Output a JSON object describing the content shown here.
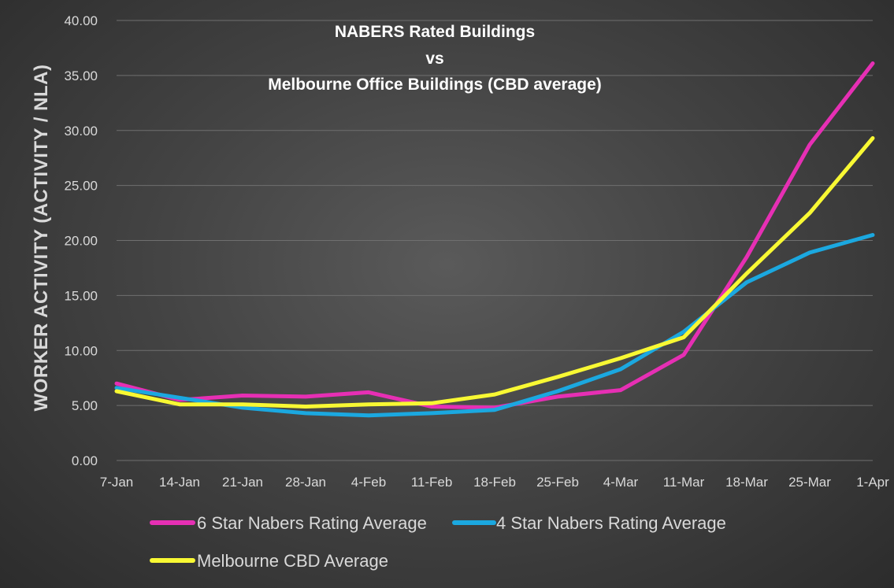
{
  "chart_data": {
    "type": "line",
    "title_lines": [
      "NABERS Rated Buildings",
      "vs",
      "Melbourne Office Buildings (CBD average)"
    ],
    "xlabel": "",
    "ylabel": "WORKER ACTIVITY (ACTIVITY / NLA)",
    "x": [
      "7-Jan",
      "14-Jan",
      "21-Jan",
      "28-Jan",
      "4-Feb",
      "11-Feb",
      "18-Feb",
      "25-Feb",
      "4-Mar",
      "11-Mar",
      "18-Mar",
      "25-Mar",
      "1-Apr"
    ],
    "ylim": [
      0,
      40
    ],
    "yticks": [
      "0.00",
      "5.00",
      "10.00",
      "15.00",
      "20.00",
      "25.00",
      "30.00",
      "35.00",
      "40.00"
    ],
    "grid": true,
    "legend_position": "bottom-left",
    "series": [
      {
        "name": "6 Star Nabers Rating Average",
        "color": "#e62fb4",
        "values": [
          7.0,
          5.5,
          5.9,
          5.8,
          6.2,
          4.9,
          4.8,
          5.8,
          6.4,
          9.6,
          18.5,
          28.7,
          36.1
        ]
      },
      {
        "name": "4 Star Nabers Rating Average",
        "color": "#1ba8e0",
        "values": [
          6.6,
          5.7,
          4.8,
          4.3,
          4.1,
          4.3,
          4.6,
          6.3,
          8.3,
          11.7,
          16.2,
          18.9,
          20.5
        ]
      },
      {
        "name": "Melbourne CBD Average",
        "color": "#f8f833",
        "values": [
          6.3,
          5.1,
          5.1,
          4.9,
          5.1,
          5.2,
          6.0,
          7.6,
          9.3,
          11.2,
          17.0,
          22.5,
          29.3
        ]
      }
    ]
  }
}
